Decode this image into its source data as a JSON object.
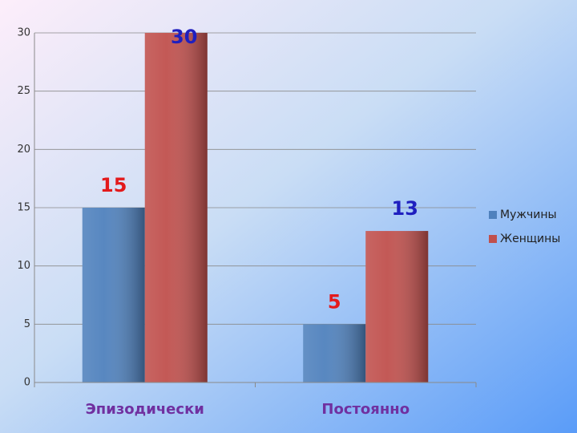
{
  "chart_data": {
    "type": "bar",
    "categories": [
      "Эпизодически",
      "Постоянно"
    ],
    "series": [
      {
        "name": "Мужчины",
        "color": "#4f81bd",
        "values": [
          15,
          5
        ],
        "label_colors": [
          "#e31a1c",
          "#e31a1c"
        ]
      },
      {
        "name": "Женщины",
        "color": "#c0504d",
        "values": [
          30,
          13
        ],
        "label_colors": [
          "#1f1fbf",
          "#1f1fbf"
        ]
      }
    ],
    "ylim": [
      0,
      30
    ],
    "yticks": [
      0,
      5,
      10,
      15,
      20,
      25,
      30
    ],
    "grid": true,
    "legend": "right"
  }
}
